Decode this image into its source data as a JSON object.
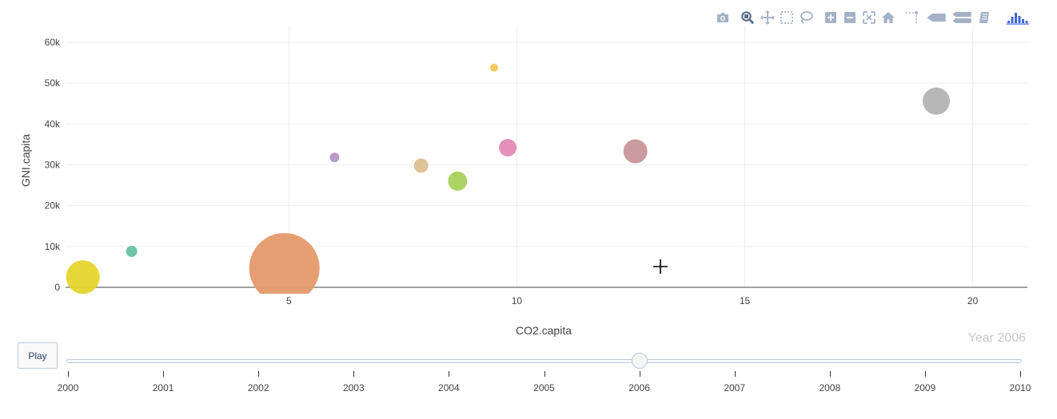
{
  "modebar": {
    "buttons": [
      {
        "name": "camera-icon",
        "title": "Download plot as a png"
      },
      {
        "name": "zoom-icon",
        "title": "Zoom",
        "active": true
      },
      {
        "name": "pan-icon",
        "title": "Pan"
      },
      {
        "name": "box-select-icon",
        "title": "Box Select"
      },
      {
        "name": "lasso-select-icon",
        "title": "Lasso Select"
      },
      {
        "name": "zoom-in-icon",
        "title": "Zoom in"
      },
      {
        "name": "zoom-out-icon",
        "title": "Zoom out"
      },
      {
        "name": "autoscale-icon",
        "title": "Autoscale"
      },
      {
        "name": "home-icon",
        "title": "Reset axes"
      },
      {
        "name": "spike-lines-icon",
        "title": "Toggle Spike Lines"
      },
      {
        "name": "hover-closest-icon",
        "title": "Show closest data on hover"
      },
      {
        "name": "hover-compare-icon",
        "title": "Compare data on hover"
      },
      {
        "name": "edit-chart-icon",
        "title": "Edit in Chart Studio"
      },
      {
        "name": "plotly-logo-icon",
        "title": "Produced with Plotly"
      }
    ],
    "colors": {
      "icon": "#a5b1c6",
      "active": "#5e6e8a",
      "logo": "#3f67d8"
    }
  },
  "chart_data": {
    "type": "scatter",
    "title": "",
    "xlabel": "CO2.capita",
    "ylabel": "GNI.capita",
    "xlim": [
      0.1,
      21.2
    ],
    "ylim": [
      0,
      60000
    ],
    "xticks": [
      5,
      10,
      15,
      20
    ],
    "yticks": [
      0,
      10000,
      20000,
      30000,
      40000,
      50000,
      60000
    ],
    "ytick_labels": [
      "0",
      "10k",
      "20k",
      "30k",
      "40k",
      "50k",
      "60k"
    ],
    "grid": true,
    "frame_label": "Year 2006",
    "points": [
      {
        "x": 0.48,
        "y": 2500,
        "size": 21,
        "color": "#e5d52c"
      },
      {
        "x": 1.55,
        "y": 8800,
        "size": 7,
        "color": "#66c2a5"
      },
      {
        "x": 4.9,
        "y": 4700,
        "size": 44,
        "color": "#e5996b"
      },
      {
        "x": 6.0,
        "y": 31800,
        "size": 6,
        "color": "#b595c8"
      },
      {
        "x": 7.9,
        "y": 29800,
        "size": 9,
        "color": "#dfc092"
      },
      {
        "x": 8.7,
        "y": 26000,
        "size": 12,
        "color": "#a9d15a"
      },
      {
        "x": 9.5,
        "y": 53800,
        "size": 5,
        "color": "#f2c85b"
      },
      {
        "x": 9.8,
        "y": 34200,
        "size": 11,
        "color": "#e48ab5"
      },
      {
        "x": 12.6,
        "y": 33300,
        "size": 15,
        "color": "#c9969a"
      },
      {
        "x": 19.2,
        "y": 45600,
        "size": 17,
        "color": "#b3b3b3"
      }
    ],
    "axis_line_color": "#444444",
    "grid_color": "#eeeeee"
  },
  "controls": {
    "play_label": "Play",
    "slider": {
      "years": [
        "2000",
        "2001",
        "2002",
        "2003",
        "2004",
        "2005",
        "2006",
        "2007",
        "2008",
        "2009",
        "2010"
      ],
      "current": "2006"
    }
  }
}
